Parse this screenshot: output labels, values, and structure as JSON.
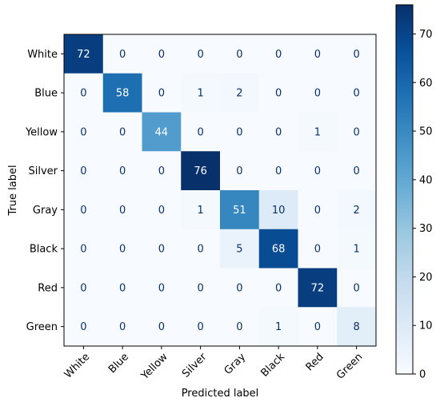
{
  "chart_data": {
    "type": "heatmap",
    "title": "",
    "xlabel": "Predicted label",
    "ylabel": "True label",
    "x_categories": [
      "White",
      "Blue",
      "Yellow",
      "Silver",
      "Gray",
      "Black",
      "Red",
      "Green"
    ],
    "y_categories": [
      "White",
      "Blue",
      "Yellow",
      "Silver",
      "Gray",
      "Black",
      "Red",
      "Green"
    ],
    "matrix": [
      [
        72,
        0,
        0,
        0,
        0,
        0,
        0,
        0
      ],
      [
        0,
        58,
        0,
        1,
        2,
        0,
        0,
        0
      ],
      [
        0,
        0,
        44,
        0,
        0,
        0,
        1,
        0
      ],
      [
        0,
        0,
        0,
        76,
        0,
        0,
        0,
        0
      ],
      [
        0,
        0,
        0,
        1,
        51,
        10,
        0,
        2
      ],
      [
        0,
        0,
        0,
        0,
        5,
        68,
        0,
        1
      ],
      [
        0,
        0,
        0,
        0,
        0,
        0,
        72,
        0
      ],
      [
        0,
        0,
        0,
        0,
        0,
        1,
        0,
        8
      ]
    ],
    "colormap": "Blues",
    "colorbar": {
      "range": [
        0,
        76
      ],
      "ticks": [
        0,
        10,
        20,
        30,
        40,
        50,
        60,
        70
      ]
    },
    "x_tick_rotation": "45 degrees",
    "grid": false
  }
}
